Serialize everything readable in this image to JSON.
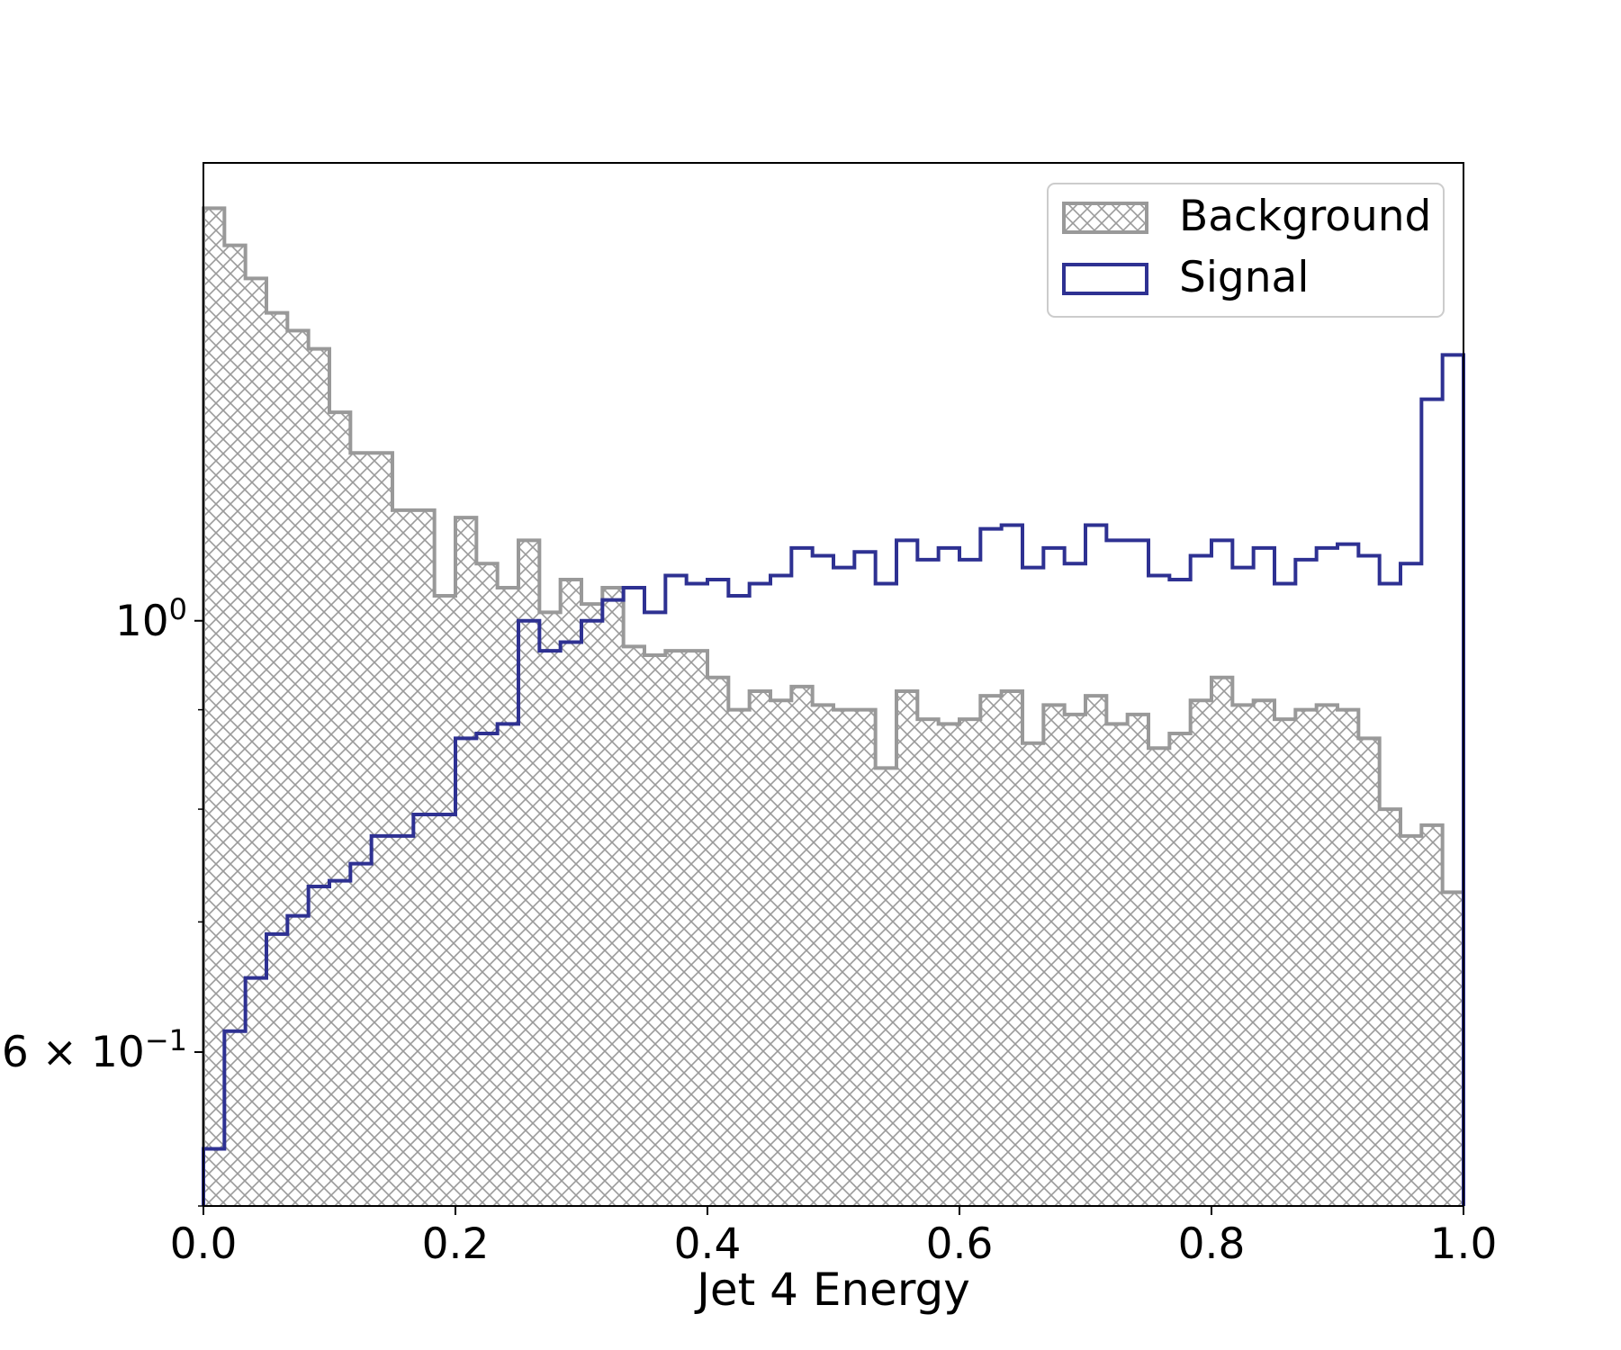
{
  "chart_data": {
    "type": "histogram",
    "xlabel": "Jet 4 Energy",
    "ylabel": "",
    "title": "",
    "xlim": [
      0,
      1
    ],
    "ylim": [
      0.5,
      1.72
    ],
    "yscale": "log",
    "grid": false,
    "legend_position": "top-right",
    "x_ticks": [
      "0.0",
      "0.2",
      "0.4",
      "0.6",
      "0.8",
      "1.0"
    ],
    "y_ticks": [
      {
        "value": 1.0,
        "base": "10",
        "exp": "0"
      },
      {
        "value": 0.6,
        "mantissa": "6",
        "base": "10",
        "exp": "−1"
      }
    ],
    "bin_edges_range": [
      0,
      1
    ],
    "n_bins": 60,
    "series": [
      {
        "name": "Background",
        "style": "hatched",
        "color": "#999999",
        "values": [
          1.63,
          1.56,
          1.5,
          1.44,
          1.41,
          1.38,
          1.28,
          1.22,
          1.22,
          1.14,
          1.14,
          1.03,
          1.13,
          1.07,
          1.04,
          1.1,
          1.01,
          1.05,
          1.02,
          1.04,
          0.97,
          0.96,
          0.965,
          0.965,
          0.935,
          0.9,
          0.92,
          0.91,
          0.925,
          0.905,
          0.9,
          0.9,
          0.84,
          0.92,
          0.89,
          0.885,
          0.89,
          0.915,
          0.92,
          0.865,
          0.905,
          0.895,
          0.915,
          0.885,
          0.895,
          0.86,
          0.875,
          0.91,
          0.935,
          0.905,
          0.91,
          0.89,
          0.9,
          0.905,
          0.9,
          0.87,
          0.8,
          0.775,
          0.785,
          0.725
        ]
      },
      {
        "name": "Signal",
        "style": "step",
        "color": "#2e3192",
        "values": [
          0.535,
          0.615,
          0.655,
          0.69,
          0.705,
          0.73,
          0.735,
          0.75,
          0.775,
          0.775,
          0.795,
          0.795,
          0.87,
          0.875,
          0.885,
          1.0,
          0.965,
          0.975,
          1.0,
          1.025,
          1.04,
          1.01,
          1.055,
          1.045,
          1.05,
          1.03,
          1.045,
          1.055,
          1.09,
          1.08,
          1.065,
          1.085,
          1.045,
          1.1,
          1.075,
          1.09,
          1.075,
          1.115,
          1.12,
          1.065,
          1.09,
          1.07,
          1.12,
          1.1,
          1.1,
          1.055,
          1.05,
          1.08,
          1.1,
          1.065,
          1.09,
          1.045,
          1.075,
          1.09,
          1.095,
          1.08,
          1.045,
          1.07,
          1.3,
          1.37
        ]
      }
    ]
  }
}
